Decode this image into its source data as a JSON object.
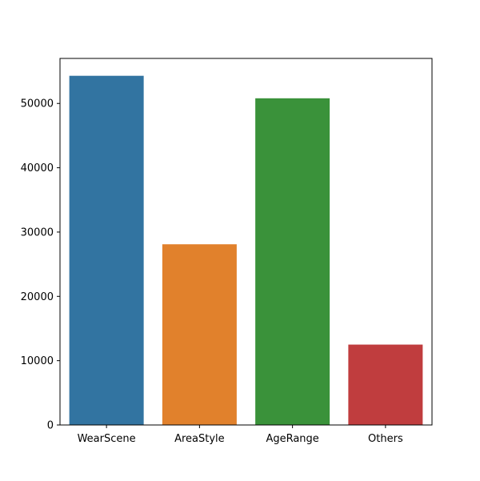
{
  "chart_data": {
    "type": "bar",
    "title": "",
    "xlabel": "",
    "ylabel": "",
    "categories": [
      "WearScene",
      "AreaStyle",
      "AgeRange",
      "Others"
    ],
    "values": [
      54300,
      28100,
      50800,
      12500
    ],
    "colors": [
      "#3274a1",
      "#e1812c",
      "#3a923a",
      "#c03d3e"
    ],
    "ylim": [
      0,
      57000
    ],
    "yticks": [
      0,
      10000,
      20000,
      30000,
      40000,
      50000
    ],
    "grid": false,
    "legend": "none"
  }
}
